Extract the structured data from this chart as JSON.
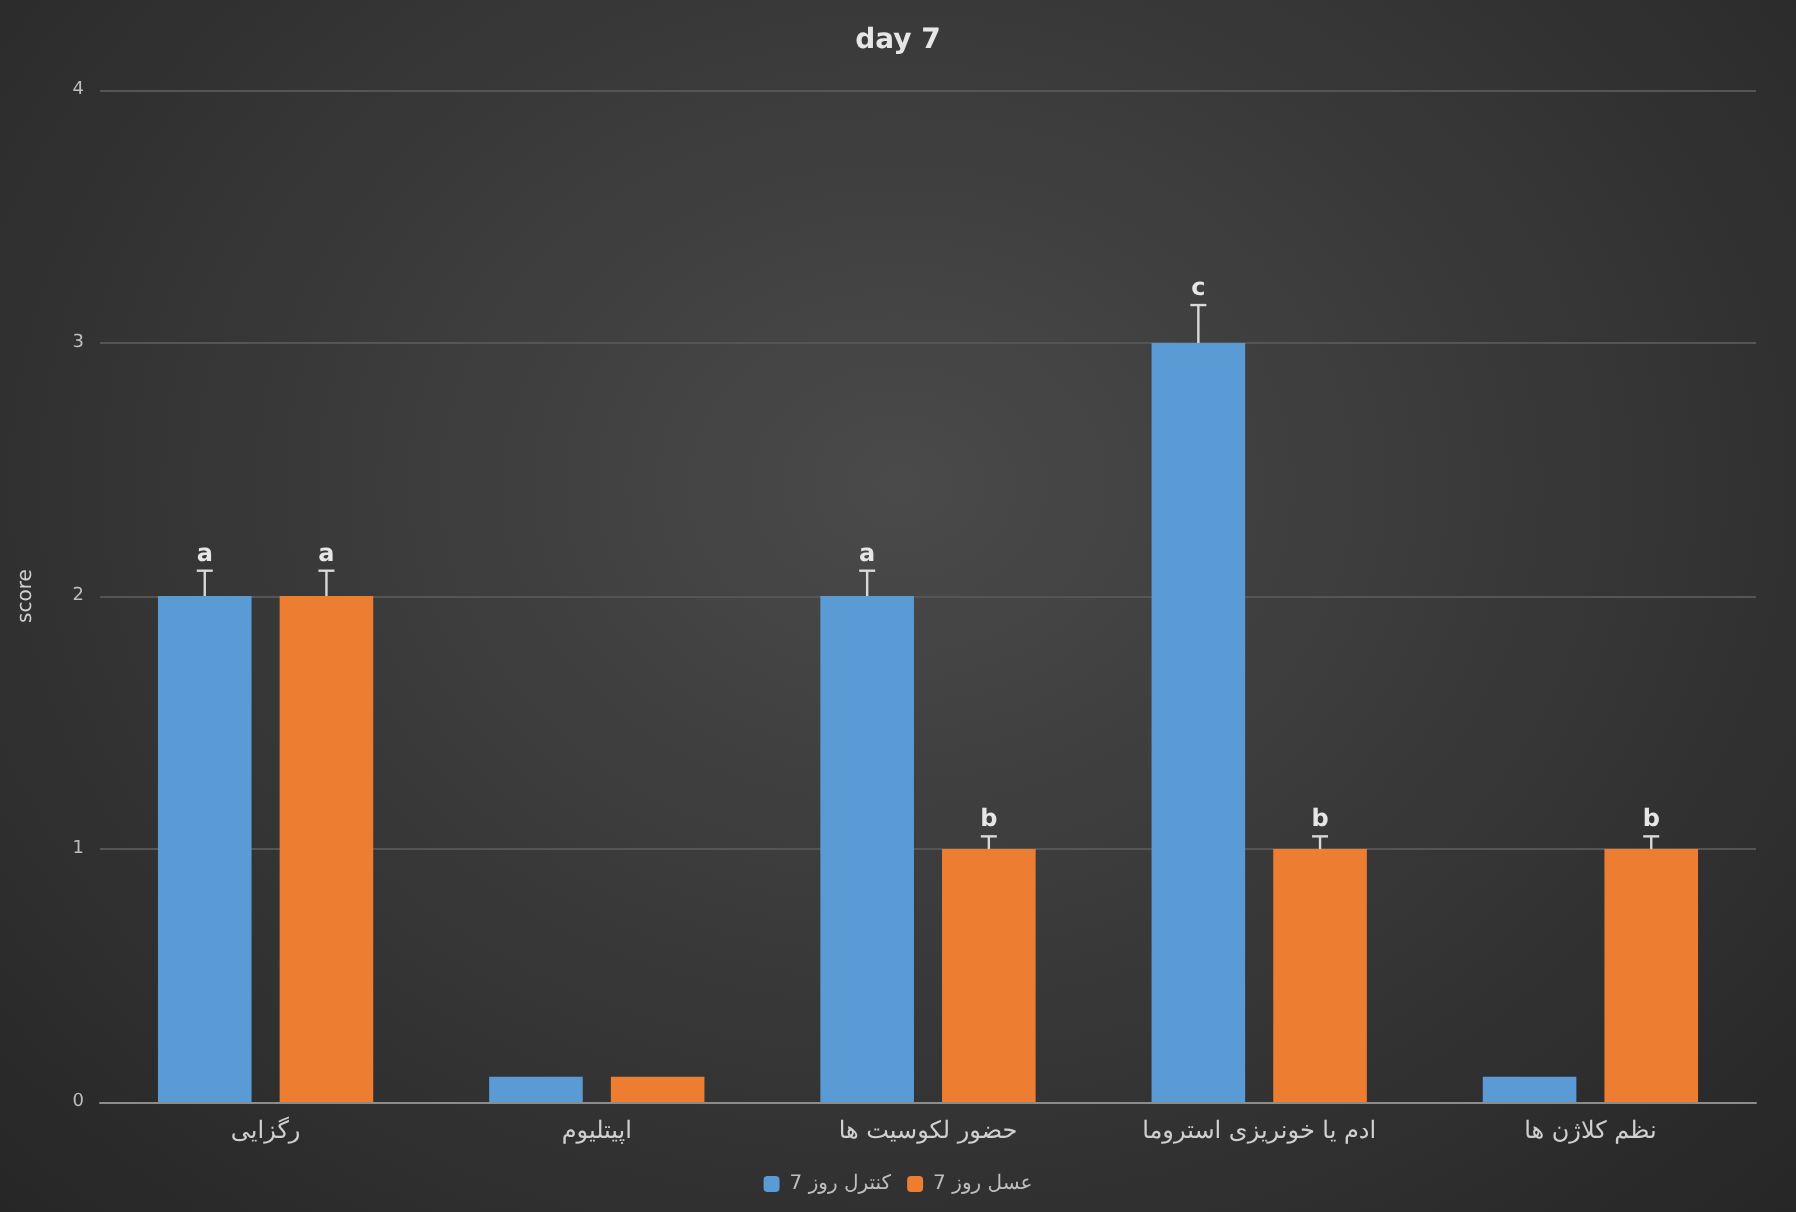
{
  "chart_data": {
    "type": "bar",
    "title": "day 7",
    "ylabel": "score",
    "categories": [
      "رگزایی",
      "اپیتلیوم",
      "حضور لکوسیت ها",
      "ادم یا خونریزی استروما",
      "نظم کلاژن ها"
    ],
    "series": [
      {
        "name": "کنترل روز 7",
        "color": "#5b9bd5",
        "values": [
          2,
          0.1,
          2,
          3,
          0.1
        ],
        "errors": [
          0.1,
          null,
          0.1,
          0.15,
          null
        ],
        "value_labels": [
          "a",
          null,
          "a",
          "c",
          null
        ]
      },
      {
        "name": "عسل روز 7",
        "color": "#ed7d31",
        "values": [
          2,
          0.1,
          1,
          1,
          1
        ],
        "errors": [
          0.1,
          null,
          0.05,
          0.05,
          0.05
        ],
        "value_labels": [
          "a",
          null,
          "b",
          "b",
          "b"
        ]
      }
    ],
    "ylim": [
      0,
      4
    ],
    "yticks": [
      0,
      1,
      2,
      3,
      4
    ],
    "grid": "y",
    "legend": "bottom"
  }
}
